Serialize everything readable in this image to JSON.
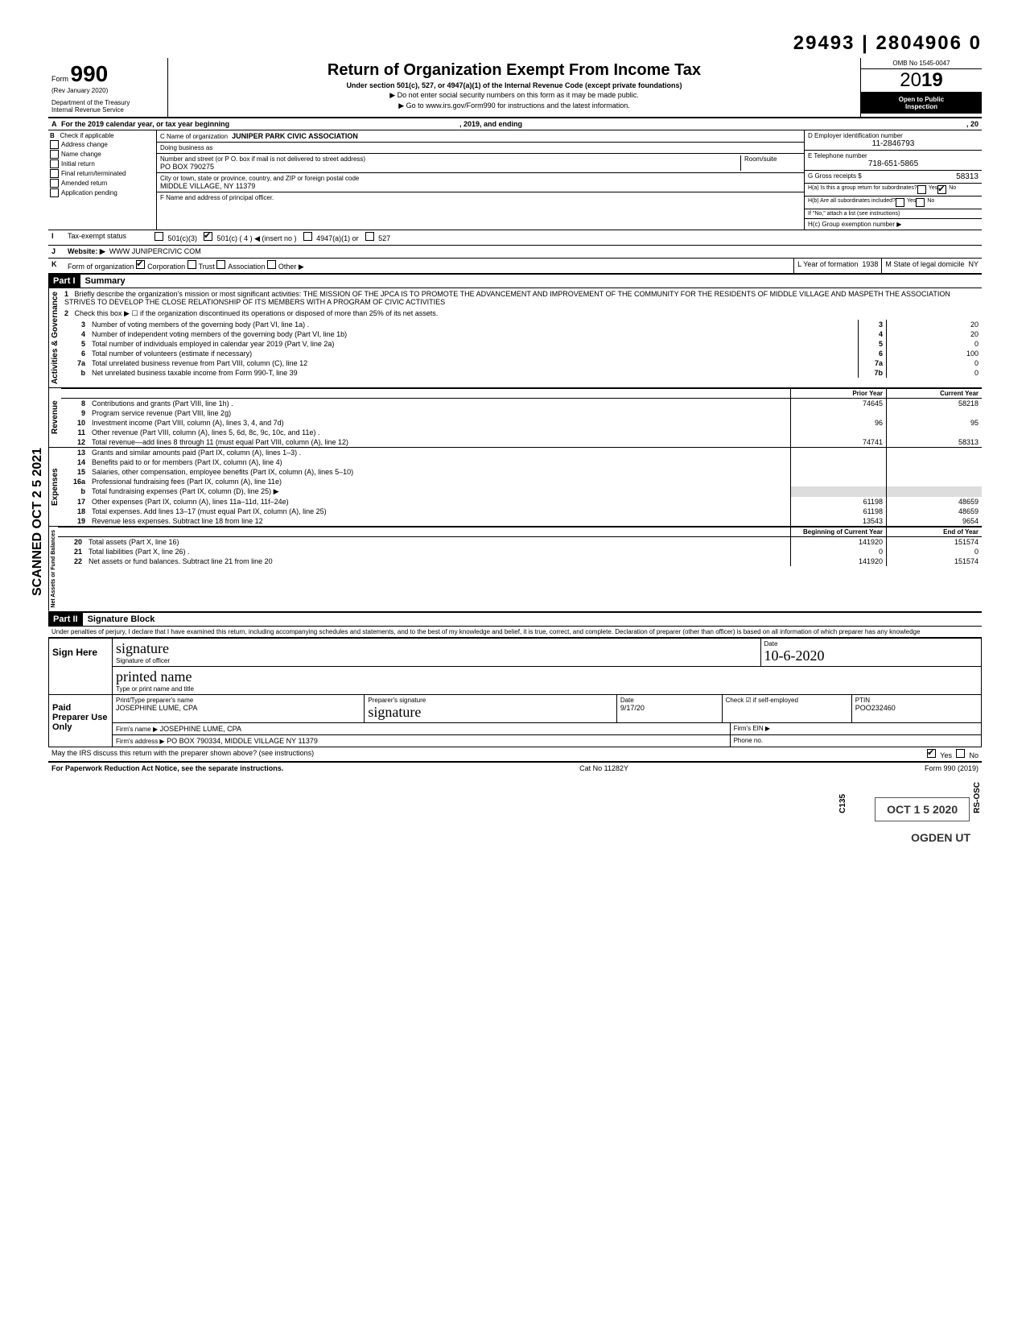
{
  "top_number": "29493 | 2804906   0",
  "form": {
    "form_label": "Form",
    "form_number": "990",
    "rev": "(Rev  January 2020)",
    "dept1": "Department of the Treasury",
    "dept2": "Internal Revenue Service",
    "title": "Return of Organization Exempt From Income Tax",
    "subtitle": "Under section 501(c), 527, or 4947(a)(1) of the Internal Revenue Code (except private foundations)",
    "note1": "▶ Do not enter social security numbers on this form as it may be made public.",
    "note2": "▶ Go to www.irs.gov/Form990 for instructions and the latest information.",
    "omb": "OMB No  1545-0047",
    "year": "2019",
    "inspection1": "Open to Public",
    "inspection2": "Inspection"
  },
  "rowA": {
    "label": "A",
    "text": "For the 2019 calendar year, or tax year beginning",
    "mid": ", 2019, and ending",
    "end": ", 20"
  },
  "b": {
    "label": "B",
    "check_label": "Check if applicable",
    "opts": [
      "Address change",
      "Name change",
      "Initial return",
      "Final return/terminated",
      "Amended return",
      "Application pending"
    ]
  },
  "c": {
    "name_label": "C Name of organization",
    "name": "JUNIPER PARK CIVIC ASSOCIATION",
    "dba_label": "Doing business as",
    "addr_label": "Number and street (or P O. box if mail is not delivered to street address)",
    "addr": "PO BOX 790275",
    "room_label": "Room/suite",
    "city_label": "City or town, state or province, country, and ZIP or foreign postal code",
    "city": "MIDDLE VILLAGE, NY  11379",
    "officer_label": "F Name and address of principal officer."
  },
  "d": {
    "label": "D Employer identification number",
    "value": "11-2846793"
  },
  "e": {
    "label": "E Telephone number",
    "value": "718-651-5865"
  },
  "g": {
    "label": "G Gross receipts $",
    "value": "58313"
  },
  "h": {
    "a": "H(a) Is this a group return for subordinates?",
    "yes": "Yes",
    "no": "No",
    "b": "H(b) Are all subordinates included?",
    "note": "If \"No,\" attach a list  (see instructions)",
    "c": "H(c) Group exemption number ▶"
  },
  "i": {
    "label": "I",
    "text": "Tax-exempt status",
    "opt1": "501(c)(3)",
    "opt2": "501(c) (",
    "opt2_num": "4",
    "opt2_suffix": ") ◀ (insert no )",
    "opt3": "4947(a)(1)  or",
    "opt4": "527"
  },
  "j": {
    "label": "J",
    "text": "Website: ▶",
    "value": "WWW JUNIPERCIVIC COM"
  },
  "k": {
    "label": "K",
    "text": "Form of organization",
    "opts": [
      "Corporation",
      "Trust",
      "Association",
      "Other ▶"
    ],
    "l_label": "L Year of formation",
    "l_value": "1938",
    "m_label": "M State of legal domicile",
    "m_value": "NY"
  },
  "part1": {
    "header": "Part I",
    "title": "Summary",
    "mission_label": "Briefly describe the organization's mission or most significant activities:",
    "mission": "THE MISSION OF THE JPCA IS TO PROMOTE THE ADVANCEMENT AND IMPROVEMENT OF THE COMMUNITY FOR THE RESIDENTS OF MIDDLE VILLAGE AND MASPETH   THE ASSOCIATION STRIVES TO DEVELOP THE CLOSE RELATIONSHIP OF ITS MEMBERS WITH A PROGRAM OF CIVIC ACTIVITIES",
    "line2": "Check this box ▶ ☐ if the organization discontinued its operations or disposed of more than 25% of its net assets."
  },
  "governance": {
    "label": "Activities & Governance",
    "rows": [
      {
        "n": "1",
        "text": ""
      },
      {
        "n": "2",
        "text": ""
      },
      {
        "n": "3",
        "text": "Number of voting members of the governing body (Part VI, line 1a) .",
        "box": "3",
        "val": "20"
      },
      {
        "n": "4",
        "text": "Number of independent voting members of the governing body (Part VI, line 1b)",
        "box": "4",
        "val": "20"
      },
      {
        "n": "5",
        "text": "Total number of individuals employed in calendar year 2019 (Part V, line 2a)",
        "box": "5",
        "val": "0"
      },
      {
        "n": "6",
        "text": "Total number of volunteers (estimate if necessary)",
        "box": "6",
        "val": "100"
      },
      {
        "n": "7a",
        "text": "Total unrelated business revenue from Part VIII, column (C), line 12",
        "box": "7a",
        "val": "0"
      },
      {
        "n": "b",
        "text": "Net unrelated business taxable income from Form 990-T, line 39",
        "box": "7b",
        "val": "0"
      }
    ]
  },
  "revenue": {
    "label": "Revenue",
    "prior": "Prior Year",
    "current": "Current Year",
    "rows": [
      {
        "n": "8",
        "text": "Contributions and grants (Part VIII, line 1h) .",
        "p": "74645",
        "c": "58218"
      },
      {
        "n": "9",
        "text": "Program service revenue (Part VIII, line 2g)",
        "p": "",
        "c": ""
      },
      {
        "n": "10",
        "text": "Investment income (Part VIII, column (A), lines 3, 4, and 7d)",
        "p": "96",
        "c": "95"
      },
      {
        "n": "11",
        "text": "Other revenue (Part VIII, column (A), lines 5, 6d, 8c, 9c, 10c, and 11e) .",
        "p": "",
        "c": ""
      },
      {
        "n": "12",
        "text": "Total revenue—add lines 8 through 11 (must equal Part VIII, column (A), line 12)",
        "p": "74741",
        "c": "58313"
      }
    ]
  },
  "expenses": {
    "label": "Expenses",
    "rows": [
      {
        "n": "13",
        "text": "Grants and similar amounts paid (Part IX, column (A), lines 1–3) .",
        "p": "",
        "c": ""
      },
      {
        "n": "14",
        "text": "Benefits paid to or for members (Part IX, column (A), line 4)",
        "p": "",
        "c": ""
      },
      {
        "n": "15",
        "text": "Salaries, other compensation, employee benefits (Part IX, column (A), lines 5–10)",
        "p": "",
        "c": ""
      },
      {
        "n": "16a",
        "text": "Professional fundraising fees (Part IX, column (A), line 11e)",
        "p": "",
        "c": ""
      },
      {
        "n": "b",
        "text": "Total fundraising expenses (Part IX, column (D), line 25) ▶",
        "p": "shaded",
        "c": "shaded"
      },
      {
        "n": "17",
        "text": "Other expenses (Part IX, column (A), lines 11a–11d, 11f–24e)",
        "p": "61198",
        "c": "48659"
      },
      {
        "n": "18",
        "text": "Total expenses. Add lines 13–17 (must equal Part IX, column (A), line 25)",
        "p": "61198",
        "c": "48659"
      },
      {
        "n": "19",
        "text": "Revenue less expenses. Subtract line 18 from line 12",
        "p": "13543",
        "c": "9654"
      }
    ]
  },
  "netassets": {
    "label": "Net Assets or Fund Balances",
    "begin": "Beginning of Current Year",
    "end": "End of Year",
    "rows": [
      {
        "n": "20",
        "text": "Total assets (Part X, line 16)",
        "p": "141920",
        "c": "151574"
      },
      {
        "n": "21",
        "text": "Total liabilities (Part X, line 26) .",
        "p": "0",
        "c": "0"
      },
      {
        "n": "22",
        "text": "Net assets or fund balances. Subtract line 21 from line 20",
        "p": "141920",
        "c": "151574"
      }
    ]
  },
  "part2": {
    "header": "Part II",
    "title": "Signature Block",
    "penalties": "Under penalties of perjury, I declare that I have examined this return, including accompanying schedules and statements, and to the best of my knowledge and belief, it is true, correct, and complete. Declaration of preparer (other than officer) is based on all information of which preparer has any knowledge"
  },
  "sign": {
    "here": "Sign Here",
    "sig_label": "Signature of officer",
    "date_label": "Date",
    "date": "10-6-2020",
    "type_label": "Type or print name and title"
  },
  "preparer": {
    "label": "Paid Preparer Use Only",
    "print_label": "Print/Type preparer's name",
    "print": "JOSEPHINE LUME, CPA",
    "sig_label": "Preparer's signature",
    "date_label": "Date",
    "date": "9/17/20",
    "check_label": "Check ☑ if self-employed",
    "ptin_label": "PTIN",
    "ptin": "POO232460",
    "firm_label": "Firm's name ▶",
    "firm": "JOSEPHINE LUME, CPA",
    "ein_label": "Firm's EIN ▶",
    "addr_label": "Firm's address ▶",
    "addr": "PO BOX 790334, MIDDLE VILLAGE NY  11379",
    "phone_label": "Phone no."
  },
  "irs_discuss": "May the IRS discuss this return with the preparer shown above? (see instructions)",
  "footer": {
    "left": "For Paperwork Reduction Act Notice, see the separate instructions.",
    "mid": "Cat  No  11282Y",
    "right": "Form 990 (2019)"
  },
  "stamps": {
    "side": "SCANNED OCT 2 5 2021",
    "c135": "C135",
    "date": "OCT 1 5 2020",
    "rsosc": "RS-OSC",
    "ogden": "OGDEN  UT"
  }
}
